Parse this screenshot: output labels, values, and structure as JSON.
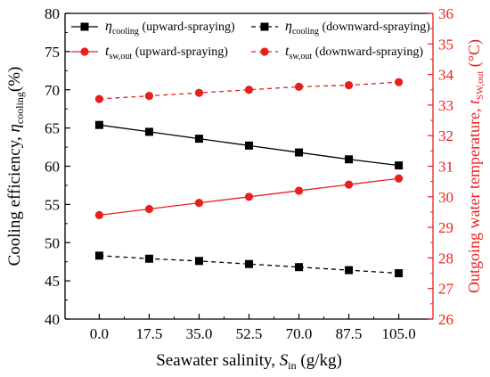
{
  "chart_data": {
    "type": "line",
    "x": [
      0.0,
      17.5,
      35.0,
      52.5,
      70.0,
      87.5,
      105.0
    ],
    "x_tick_labels": [
      "0.0",
      "17.5",
      "35.0",
      "52.5",
      "70.0",
      "87.5",
      "105.0"
    ],
    "xlim": [
      -12,
      117
    ],
    "xlabel": "Seawater salinity,",
    "xlabel_symbol": "S",
    "xlabel_sub": "in",
    "xlabel_unit": "(g/kg)",
    "ylabel": "Cooling efficiency,",
    "ylabel_symbol": "η",
    "ylabel_sub": "cooling",
    "ylabel_unit": "(%)",
    "ylim": [
      40,
      80
    ],
    "y_ticks": [
      "40",
      "45",
      "50",
      "55",
      "60",
      "65",
      "70",
      "75",
      "80"
    ],
    "y2label": "Outgoing water temperature,",
    "y2label_symbol": "t",
    "y2label_sub": "SW,out",
    "y2label_unit": "(°C)",
    "y2lim": [
      26,
      36
    ],
    "y2_ticks": [
      "26",
      "27",
      "28",
      "29",
      "30",
      "31",
      "32",
      "33",
      "34",
      "35",
      "36"
    ],
    "grid": false,
    "legend_position": "top",
    "series": [
      {
        "symbol": "η",
        "sub": "cooling",
        "name": "(upward-spraying)",
        "axis": "left",
        "color": "#000000",
        "dash": "solid",
        "marker": "square",
        "values": [
          65.4,
          64.5,
          63.6,
          62.7,
          61.8,
          60.9,
          60.1
        ]
      },
      {
        "symbol": "η",
        "sub": "cooling",
        "name": "(downward-spraying)",
        "axis": "left",
        "color": "#000000",
        "dash": "dashed",
        "marker": "square",
        "values": [
          48.3,
          47.9,
          47.6,
          47.2,
          46.8,
          46.4,
          46.0
        ]
      },
      {
        "symbol": "t",
        "sub": "sw,out",
        "name": "(upward-spraying)",
        "axis": "right",
        "color": "#e8201c",
        "dash": "solid",
        "marker": "circle",
        "values": [
          29.4,
          29.6,
          29.8,
          30.0,
          30.2,
          30.4,
          30.6
        ]
      },
      {
        "symbol": "t",
        "sub": "sw,out",
        "name": "(downward-spraying)",
        "axis": "right",
        "color": "#e8201c",
        "dash": "dashed",
        "marker": "circle",
        "values": [
          33.2,
          33.3,
          33.4,
          33.5,
          33.6,
          33.65,
          33.75
        ]
      }
    ]
  }
}
